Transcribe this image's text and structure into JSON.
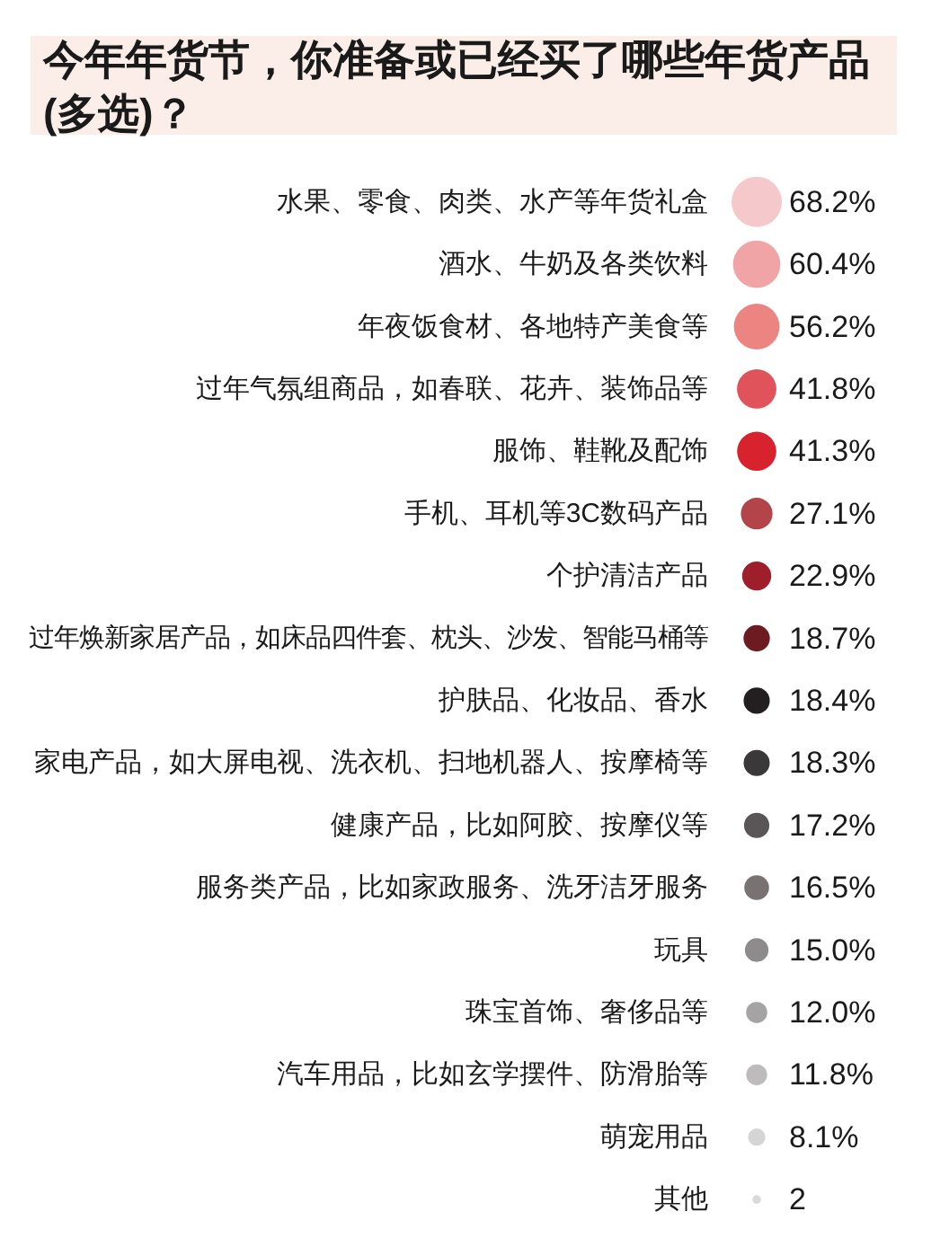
{
  "chart_data": {
    "type": "other",
    "title": "今年年货节，你准备或已经买了哪些年货产品(多选)？",
    "categories": [
      "水果、零食、肉类、水产等年货礼盒",
      "酒水、牛奶及各类饮料",
      "年夜饭食材、各地特产美食等",
      "过年气氛组商品，如春联、花卉、装饰品等",
      "服饰、鞋靴及配饰",
      "手机、耳机等3C数码产品",
      "个护清洁产品",
      "过年焕新家居产品，如床品四件套、枕头、沙发、智能马桶等",
      "护肤品、化妆品、香水",
      "家电产品，如大屏电视、洗衣机、扫地机器人、按摩椅等",
      "健康产品，比如阿胶、按摩仪等",
      "服务类产品，比如家政服务、洗牙洁牙服务",
      "玩具",
      "珠宝首饰、奢侈品等",
      "汽车用品，比如玄学摆件、防滑胎等",
      "萌宠用品",
      "其他"
    ],
    "values": [
      68.2,
      60.4,
      56.2,
      41.8,
      41.3,
      27.1,
      22.9,
      18.7,
      18.4,
      18.3,
      17.2,
      16.5,
      15.0,
      12.0,
      11.8,
      8.1,
      2
    ],
    "value_labels": [
      "68.2%",
      "60.4%",
      "56.2%",
      "41.8%",
      "41.3%",
      "27.1%",
      "22.9%",
      "18.7%",
      "18.4%",
      "18.3%",
      "17.2%",
      "16.5%",
      "15.0%",
      "12.0%",
      "11.8%",
      "8.1%",
      "2"
    ],
    "colors": [
      "#f5c8cb",
      "#f0a4a5",
      "#ec8582",
      "#e0535a",
      "#d8232f",
      "#b2444a",
      "#9e1f2b",
      "#6e1a21",
      "#231f20",
      "#3a3839",
      "#5a5657",
      "#797273",
      "#8d8b8c",
      "#a5a3a4",
      "#bdbbbc",
      "#d6d5d5",
      "#dadada"
    ]
  }
}
